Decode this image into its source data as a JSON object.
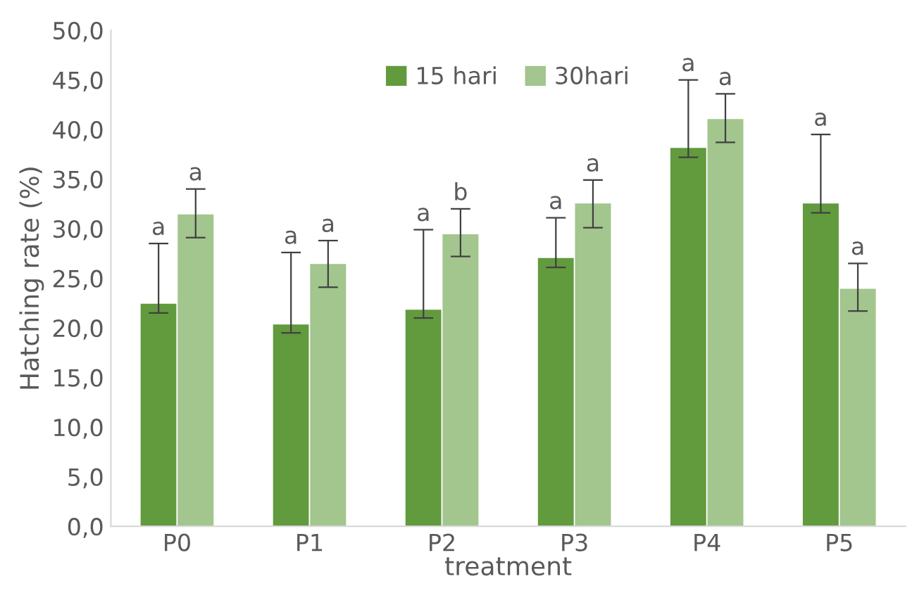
{
  "chart_data": {
    "type": "bar",
    "xlabel": "treatment",
    "ylabel": "Hatching rate (%)",
    "categories": [
      "P0",
      "P1",
      "P2",
      "P3",
      "P4",
      "P5"
    ],
    "series": [
      {
        "name": "15 hari",
        "color": "#629a3e",
        "values": [
          22.5,
          20.4,
          21.9,
          27.1,
          38.2,
          32.6
        ],
        "errors": [
          [
            21.5,
            28.5
          ],
          [
            19.5,
            27.6
          ],
          [
            21.0,
            29.9
          ],
          [
            26.1,
            31.1
          ],
          [
            37.2,
            45.0
          ],
          [
            31.6,
            39.5
          ]
        ]
      },
      {
        "name": "30hari",
        "color": "#a3c58e",
        "values": [
          31.5,
          26.5,
          29.5,
          32.6,
          41.1,
          24.0
        ],
        "errors": [
          [
            29.1,
            34.0
          ],
          [
            24.1,
            28.8
          ],
          [
            27.2,
            32.0
          ],
          [
            30.1,
            34.9
          ],
          [
            38.7,
            43.6
          ],
          [
            21.7,
            26.5
          ]
        ]
      }
    ],
    "annotations": [
      "a",
      "a",
      "a",
      "a",
      "a",
      "a",
      "a",
      "a",
      "b",
      "a",
      "a",
      "a"
    ],
    "ylim": [
      0,
      50
    ],
    "yticks": [
      {
        "value": 0,
        "label": "0,0"
      },
      {
        "value": 5,
        "label": "5,0"
      },
      {
        "value": 10,
        "label": "10,0"
      },
      {
        "value": 15,
        "label": "15,0"
      },
      {
        "value": 20,
        "label": "20,0"
      },
      {
        "value": 25,
        "label": "25,0"
      },
      {
        "value": 30,
        "label": "30,0"
      },
      {
        "value": 35,
        "label": "35,0"
      },
      {
        "value": 40,
        "label": "40,0"
      },
      {
        "value": 45,
        "label": "45,0"
      },
      {
        "value": 50,
        "label": "50,0"
      }
    ],
    "grid": false,
    "legend": "top"
  }
}
